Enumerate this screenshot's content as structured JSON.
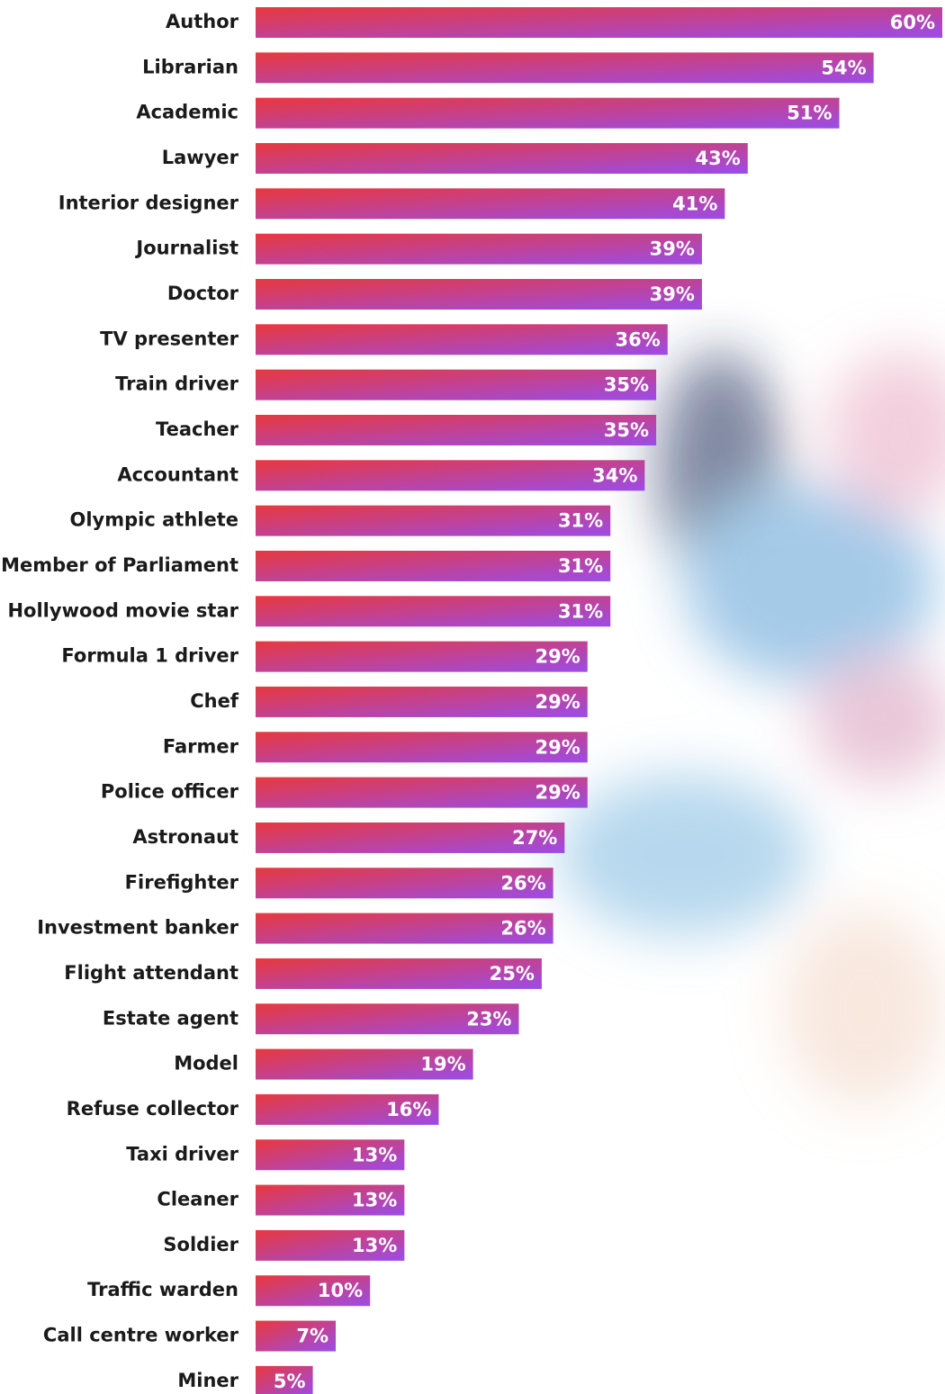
{
  "chart_data": {
    "type": "bar",
    "orientation": "horizontal",
    "categories": [
      "Author",
      "Librarian",
      "Academic",
      "Lawyer",
      "Interior designer",
      "Journalist",
      "Doctor",
      "TV presenter",
      "Train driver",
      "Teacher",
      "Accountant",
      "Olympic athlete",
      "Member of Parliament",
      "Hollywood movie star",
      "Formula 1 driver",
      "Chef",
      "Farmer",
      "Police officer",
      "Astronaut",
      "Firefighter",
      "Investment banker",
      "Flight attendant",
      "Estate agent",
      "Model",
      "Refuse collector",
      "Taxi driver",
      "Cleaner",
      "Soldier",
      "Traffic warden",
      "Call centre worker",
      "Miner"
    ],
    "values": [
      60,
      54,
      51,
      43,
      41,
      39,
      39,
      36,
      35,
      35,
      34,
      31,
      31,
      31,
      29,
      29,
      29,
      29,
      27,
      26,
      26,
      25,
      23,
      19,
      16,
      13,
      13,
      13,
      10,
      7,
      5
    ],
    "value_labels": [
      "60%",
      "54%",
      "51%",
      "43%",
      "41%",
      "39%",
      "39%",
      "36%",
      "35%",
      "35%",
      "34%",
      "31%",
      "31%",
      "31%",
      "29%",
      "29%",
      "29%",
      "29%",
      "27%",
      "26%",
      "26%",
      "25%",
      "23%",
      "19%",
      "16%",
      "13%",
      "13%",
      "13%",
      "10%",
      "7%",
      "5%"
    ],
    "color": [
      "#e8383d",
      "#9b4ce8"
    ]
  }
}
